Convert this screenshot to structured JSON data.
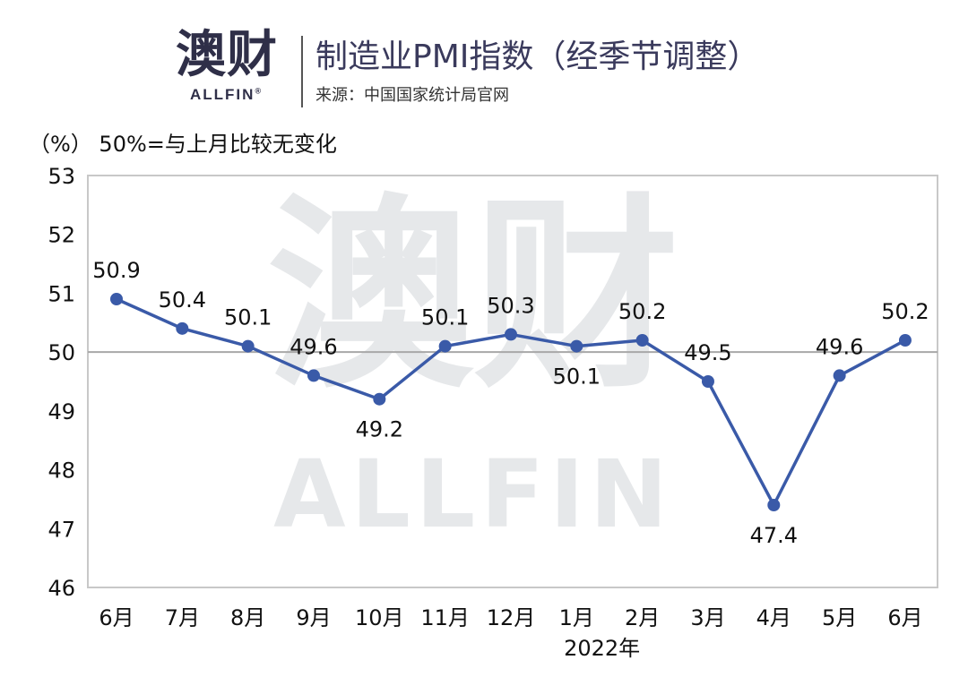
{
  "header": {
    "logo_cn": "澳财",
    "logo_en": "ALLFIN",
    "logo_reg": "®",
    "title": "制造业PMI指数（经季节调整）",
    "source": "来源：中国国家统计局官网"
  },
  "unit_note": "（%）   50%=与上月比较无变化",
  "watermark": {
    "cn": "澳财",
    "en": "ALLFIN"
  },
  "colors": {
    "line": "#3a5aa8",
    "frame": "#c8c8c8",
    "reference": "#a8a8a8",
    "title": "#3a3a5c"
  },
  "chart_data": {
    "type": "line",
    "categories": [
      "6月",
      "7月",
      "8月",
      "9月",
      "10月",
      "11月",
      "12月",
      "1月",
      "2月",
      "3月",
      "4月",
      "5月",
      "6月"
    ],
    "series": [
      {
        "values": [
          50.9,
          50.4,
          50.1,
          49.6,
          49.2,
          50.1,
          50.3,
          50.1,
          50.2,
          49.5,
          47.4,
          49.6,
          50.2
        ]
      }
    ],
    "data_labels": [
      "50.9",
      "50.4",
      "50.1",
      "49.6",
      "49.2",
      "50.1",
      "50.3",
      "50.1",
      "50.2",
      "49.5",
      "47.4",
      "49.6",
      "50.2"
    ],
    "yticks": [
      "53",
      "52",
      "51",
      "50",
      "49",
      "48",
      "47",
      "46"
    ],
    "ylim": [
      46,
      53
    ],
    "reference_line": 50,
    "year_label": "2022年",
    "year_label_under_index": 8,
    "grid": false
  }
}
